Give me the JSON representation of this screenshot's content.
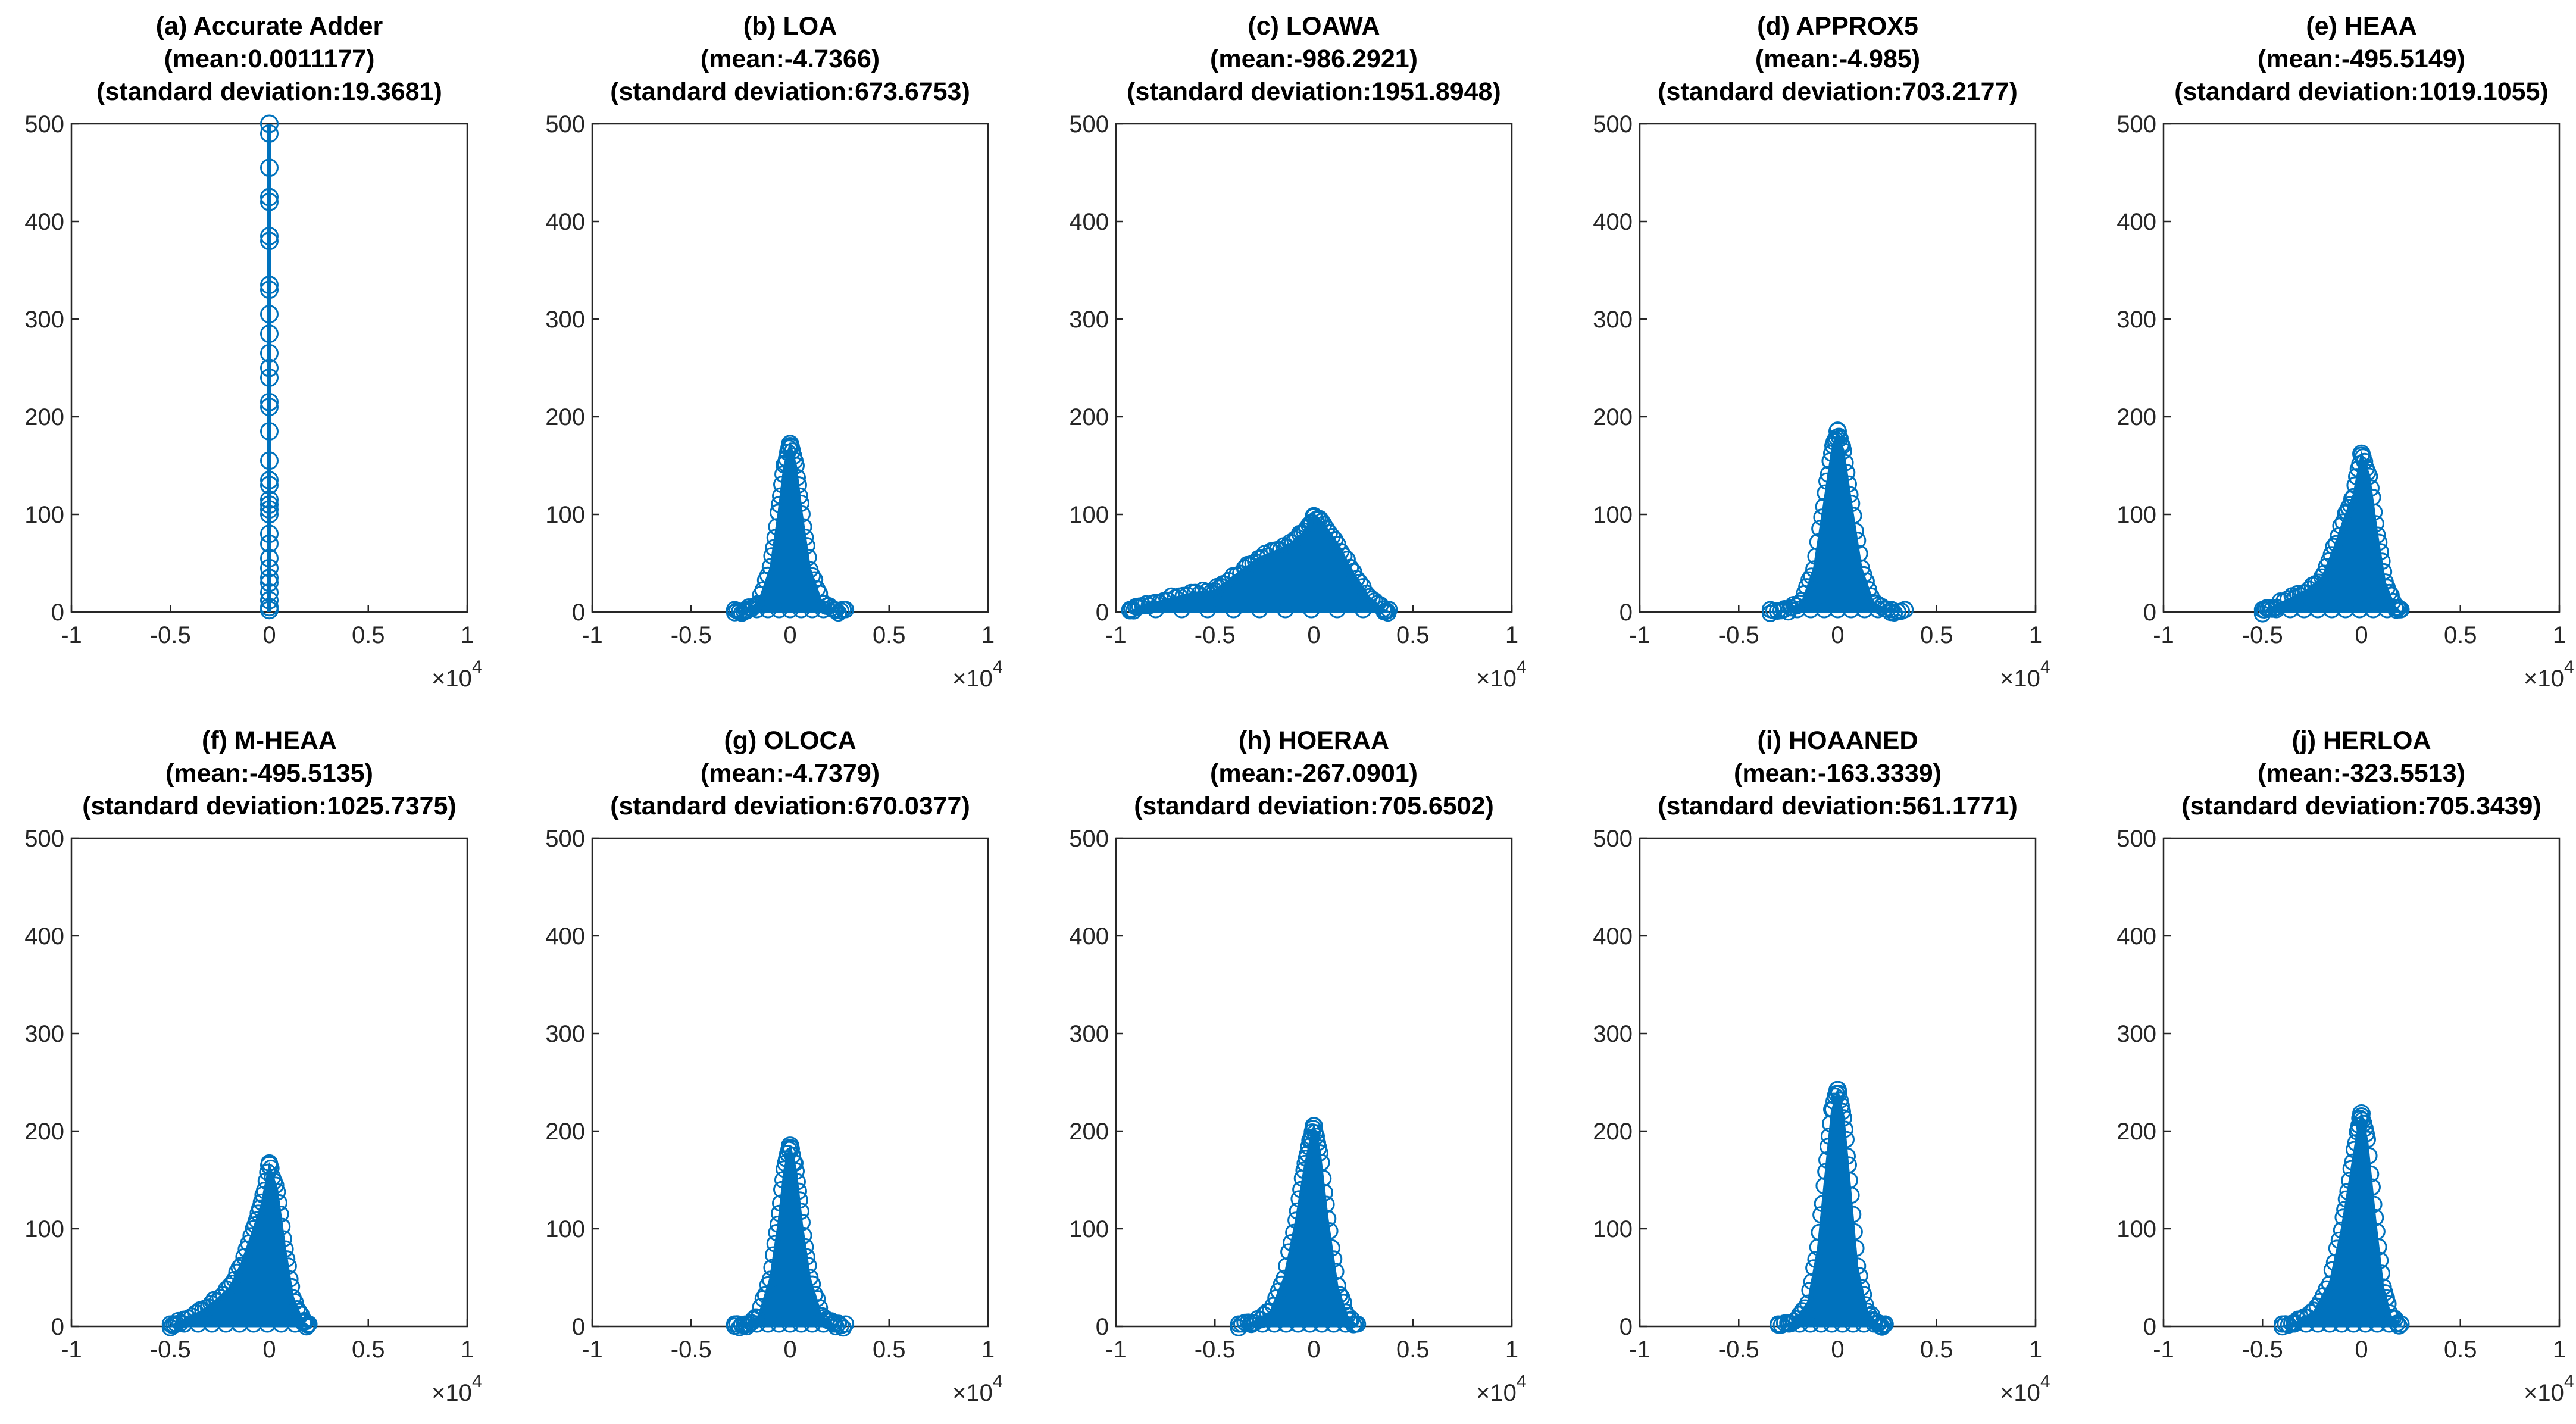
{
  "chart_data": [
    {
      "type": "scatter",
      "panel": "a",
      "title": [
        "(a) Accurate Adder",
        "(mean:0.0011177)",
        "(standard deviation:19.3681)"
      ],
      "x_exponent": "×10",
      "x_exponent_power": "4",
      "xlim": [
        -1,
        1
      ],
      "ylim": [
        0,
        500
      ],
      "xticks": [
        -1,
        -0.5,
        0,
        0.5,
        1
      ],
      "xtick_labels": [
        "-1",
        "-0.5",
        "0",
        "0.5",
        "1"
      ],
      "yticks": [
        0,
        100,
        200,
        300,
        400,
        500
      ],
      "ytick_labels": [
        "0",
        "100",
        "200",
        "300",
        "400",
        "500"
      ],
      "color": "#0072BD",
      "distribution": "spike",
      "spike_points": [
        500,
        490,
        455,
        425,
        420,
        385,
        380,
        335,
        330,
        305,
        285,
        265,
        250,
        240,
        215,
        210,
        185,
        155,
        135,
        130,
        115,
        110,
        105,
        100,
        80,
        70,
        55,
        45,
        35,
        30,
        20,
        12,
        5,
        2
      ]
    },
    {
      "type": "scatter",
      "panel": "b",
      "title": [
        "(b) LOA",
        "(mean:-4.7366)",
        "(standard deviation:673.6753)"
      ],
      "x_exponent": "×10",
      "x_exponent_power": "4",
      "xlim": [
        -1,
        1
      ],
      "ylim": [
        0,
        500
      ],
      "xticks": [
        -1,
        -0.5,
        0,
        0.5,
        1
      ],
      "xtick_labels": [
        "-1",
        "-0.5",
        "0",
        "0.5",
        "1"
      ],
      "yticks": [
        0,
        100,
        200,
        300,
        400,
        500
      ],
      "ytick_labels": [
        "0",
        "100",
        "200",
        "300",
        "400",
        "500"
      ],
      "color": "#0072BD",
      "envelope": [
        [
          -0.28,
          0
        ],
        [
          -0.22,
          2
        ],
        [
          -0.16,
          10
        ],
        [
          -0.1,
          45
        ],
        [
          -0.06,
          100
        ],
        [
          -0.03,
          150
        ],
        [
          0,
          172
        ],
        [
          0.03,
          150
        ],
        [
          0.06,
          100
        ],
        [
          0.1,
          45
        ],
        [
          0.16,
          10
        ],
        [
          0.22,
          2
        ],
        [
          0.28,
          0
        ]
      ]
    },
    {
      "type": "scatter",
      "panel": "c",
      "title": [
        "(c) LOAWA",
        "(mean:-986.2921)",
        "(standard deviation:1951.8948)"
      ],
      "x_exponent": "×10",
      "x_exponent_power": "4",
      "xlim": [
        -1,
        1
      ],
      "ylim": [
        0,
        500
      ],
      "xticks": [
        -1,
        -0.5,
        0,
        0.5,
        1
      ],
      "xtick_labels": [
        "-1",
        "-0.5",
        "0",
        "0.5",
        "1"
      ],
      "yticks": [
        0,
        100,
        200,
        300,
        400,
        500
      ],
      "ytick_labels": [
        "0",
        "100",
        "200",
        "300",
        "400",
        "500"
      ],
      "color": "#0072BD",
      "envelope": [
        [
          -0.93,
          0
        ],
        [
          -0.88,
          5
        ],
        [
          -0.8,
          10
        ],
        [
          -0.7,
          15
        ],
        [
          -0.6,
          20
        ],
        [
          -0.5,
          22
        ],
        [
          -0.45,
          30
        ],
        [
          -0.35,
          45
        ],
        [
          -0.28,
          55
        ],
        [
          -0.2,
          62
        ],
        [
          -0.12,
          70
        ],
        [
          -0.06,
          80
        ],
        [
          0,
          98
        ],
        [
          0.05,
          90
        ],
        [
          0.12,
          70
        ],
        [
          0.2,
          40
        ],
        [
          0.28,
          15
        ],
        [
          0.35,
          3
        ],
        [
          0.38,
          0
        ]
      ]
    },
    {
      "type": "scatter",
      "panel": "d",
      "title": [
        "(d) APPROX5",
        "(mean:-4.985)",
        "(standard deviation:703.2177)"
      ],
      "x_exponent": "×10",
      "x_exponent_power": "4",
      "xlim": [
        -1,
        1
      ],
      "ylim": [
        0,
        500
      ],
      "xticks": [
        -1,
        -0.5,
        0,
        0.5,
        1
      ],
      "xtick_labels": [
        "-1",
        "-0.5",
        "0",
        "0.5",
        "1"
      ],
      "yticks": [
        0,
        100,
        200,
        300,
        400,
        500
      ],
      "ytick_labels": [
        "0",
        "100",
        "200",
        "300",
        "400",
        "500"
      ],
      "color": "#0072BD",
      "envelope": [
        [
          -0.34,
          0
        ],
        [
          -0.25,
          2
        ],
        [
          -0.18,
          10
        ],
        [
          -0.12,
          45
        ],
        [
          -0.07,
          110
        ],
        [
          -0.03,
          165
        ],
        [
          0,
          185
        ],
        [
          0.03,
          165
        ],
        [
          0.07,
          110
        ],
        [
          0.12,
          45
        ],
        [
          0.18,
          10
        ],
        [
          0.25,
          2
        ],
        [
          0.34,
          0
        ]
      ]
    },
    {
      "type": "scatter",
      "panel": "e",
      "title": [
        "(e) HEAA",
        "(mean:-495.5149)",
        "(standard deviation:1019.1055)"
      ],
      "x_exponent": "×10",
      "x_exponent_power": "4",
      "xlim": [
        -1,
        1
      ],
      "ylim": [
        0,
        500
      ],
      "xticks": [
        -1,
        -0.5,
        0,
        0.5,
        1
      ],
      "xtick_labels": [
        "-1",
        "-0.5",
        "0",
        "0.5",
        "1"
      ],
      "yticks": [
        0,
        100,
        200,
        300,
        400,
        500
      ],
      "ytick_labels": [
        "0",
        "100",
        "200",
        "300",
        "400",
        "500"
      ],
      "color": "#0072BD",
      "envelope": [
        [
          -0.5,
          0
        ],
        [
          -0.45,
          5
        ],
        [
          -0.35,
          15
        ],
        [
          -0.28,
          22
        ],
        [
          -0.2,
          35
        ],
        [
          -0.14,
          65
        ],
        [
          -0.08,
          100
        ],
        [
          -0.04,
          120
        ],
        [
          0,
          162
        ],
        [
          0.04,
          140
        ],
        [
          0.08,
          80
        ],
        [
          0.12,
          30
        ],
        [
          0.17,
          5
        ],
        [
          0.2,
          0
        ]
      ]
    },
    {
      "type": "scatter",
      "panel": "f",
      "title": [
        "(f) M-HEAA",
        "(mean:-495.5135)",
        "(standard deviation:1025.7375)"
      ],
      "x_exponent": "×10",
      "x_exponent_power": "4",
      "xlim": [
        -1,
        1
      ],
      "ylim": [
        0,
        500
      ],
      "xticks": [
        -1,
        -0.5,
        0,
        0.5,
        1
      ],
      "xtick_labels": [
        "-1",
        "-0.5",
        "0",
        "0.5",
        "1"
      ],
      "yticks": [
        0,
        100,
        200,
        300,
        400,
        500
      ],
      "ytick_labels": [
        "0",
        "100",
        "200",
        "300",
        "400",
        "500"
      ],
      "color": "#0072BD",
      "envelope": [
        [
          -0.5,
          0
        ],
        [
          -0.45,
          5
        ],
        [
          -0.35,
          15
        ],
        [
          -0.28,
          25
        ],
        [
          -0.2,
          40
        ],
        [
          -0.14,
          65
        ],
        [
          -0.08,
          100
        ],
        [
          -0.04,
          125
        ],
        [
          0,
          165
        ],
        [
          0.04,
          140
        ],
        [
          0.08,
          80
        ],
        [
          0.12,
          30
        ],
        [
          0.17,
          5
        ],
        [
          0.2,
          0
        ]
      ]
    },
    {
      "type": "scatter",
      "panel": "g",
      "title": [
        "(g) OLOCA",
        "(mean:-4.7379)",
        "(standard deviation:670.0377)"
      ],
      "x_exponent": "×10",
      "x_exponent_power": "4",
      "xlim": [
        -1,
        1
      ],
      "ylim": [
        0,
        500
      ],
      "xticks": [
        -1,
        -0.5,
        0,
        0.5,
        1
      ],
      "xtick_labels": [
        "-1",
        "-0.5",
        "0",
        "0.5",
        "1"
      ],
      "yticks": [
        0,
        100,
        200,
        300,
        400,
        500
      ],
      "ytick_labels": [
        "0",
        "100",
        "200",
        "300",
        "400",
        "500"
      ],
      "color": "#0072BD",
      "envelope": [
        [
          -0.28,
          0
        ],
        [
          -0.22,
          2
        ],
        [
          -0.16,
          10
        ],
        [
          -0.1,
          50
        ],
        [
          -0.06,
          105
        ],
        [
          -0.03,
          160
        ],
        [
          0,
          185
        ],
        [
          0.03,
          160
        ],
        [
          0.06,
          105
        ],
        [
          0.1,
          50
        ],
        [
          0.16,
          10
        ],
        [
          0.22,
          2
        ],
        [
          0.28,
          0
        ]
      ]
    },
    {
      "type": "scatter",
      "panel": "h",
      "title": [
        "(h) HOERAA",
        "(mean:-267.0901)",
        "(standard deviation:705.6502)"
      ],
      "x_exponent": "×10",
      "x_exponent_power": "4",
      "xlim": [
        -1,
        1
      ],
      "ylim": [
        0,
        500
      ],
      "xticks": [
        -1,
        -0.5,
        0,
        0.5,
        1
      ],
      "xtick_labels": [
        "-1",
        "-0.5",
        "0",
        "0.5",
        "1"
      ],
      "yticks": [
        0,
        100,
        200,
        300,
        400,
        500
      ],
      "ytick_labels": [
        "0",
        "100",
        "200",
        "300",
        "400",
        "500"
      ],
      "color": "#0072BD",
      "envelope": [
        [
          -0.38,
          0
        ],
        [
          -0.3,
          5
        ],
        [
          -0.22,
          15
        ],
        [
          -0.15,
          50
        ],
        [
          -0.09,
          110
        ],
        [
          -0.05,
          160
        ],
        [
          -0.02,
          190
        ],
        [
          0,
          205
        ],
        [
          0.03,
          180
        ],
        [
          0.07,
          110
        ],
        [
          0.12,
          40
        ],
        [
          0.17,
          10
        ],
        [
          0.22,
          0
        ]
      ]
    },
    {
      "type": "scatter",
      "panel": "i",
      "title": [
        "(i) HOAANED",
        "(mean:-163.3339)",
        "(standard deviation:561.1771)"
      ],
      "x_exponent": "×10",
      "x_exponent_power": "4",
      "xlim": [
        -1,
        1
      ],
      "ylim": [
        0,
        500
      ],
      "xticks": [
        -1,
        -0.5,
        0,
        0.5,
        1
      ],
      "xtick_labels": [
        "-1",
        "-0.5",
        "0",
        "0.5",
        "1"
      ],
      "yticks": [
        0,
        100,
        200,
        300,
        400,
        500
      ],
      "ytick_labels": [
        "0",
        "100",
        "200",
        "300",
        "400",
        "500"
      ],
      "color": "#0072BD",
      "envelope": [
        [
          -0.3,
          0
        ],
        [
          -0.22,
          5
        ],
        [
          -0.15,
          25
        ],
        [
          -0.1,
          80
        ],
        [
          -0.06,
          160
        ],
        [
          -0.03,
          220
        ],
        [
          0,
          242
        ],
        [
          0.03,
          215
        ],
        [
          0.06,
          150
        ],
        [
          0.1,
          60
        ],
        [
          0.15,
          15
        ],
        [
          0.2,
          3
        ],
        [
          0.24,
          0
        ]
      ]
    },
    {
      "type": "scatter",
      "panel": "j",
      "title": [
        "(j) HERLOA",
        "(mean:-323.5513)",
        "(standard deviation:705.3439)"
      ],
      "x_exponent": "×10",
      "x_exponent_power": "4",
      "xlim": [
        -1,
        1
      ],
      "ylim": [
        0,
        500
      ],
      "xticks": [
        -1,
        -0.5,
        0,
        0.5,
        1
      ],
      "xtick_labels": [
        "-1",
        "-0.5",
        "0",
        "0.5",
        "1"
      ],
      "yticks": [
        0,
        100,
        200,
        300,
        400,
        500
      ],
      "ytick_labels": [
        "0",
        "100",
        "200",
        "300",
        "400",
        "500"
      ],
      "color": "#0072BD",
      "envelope": [
        [
          -0.4,
          0
        ],
        [
          -0.32,
          5
        ],
        [
          -0.24,
          15
        ],
        [
          -0.16,
          45
        ],
        [
          -0.1,
          100
        ],
        [
          -0.06,
          150
        ],
        [
          -0.02,
          200
        ],
        [
          0,
          218
        ],
        [
          0.03,
          190
        ],
        [
          0.07,
          110
        ],
        [
          0.11,
          40
        ],
        [
          0.15,
          10
        ],
        [
          0.2,
          0
        ]
      ]
    }
  ]
}
